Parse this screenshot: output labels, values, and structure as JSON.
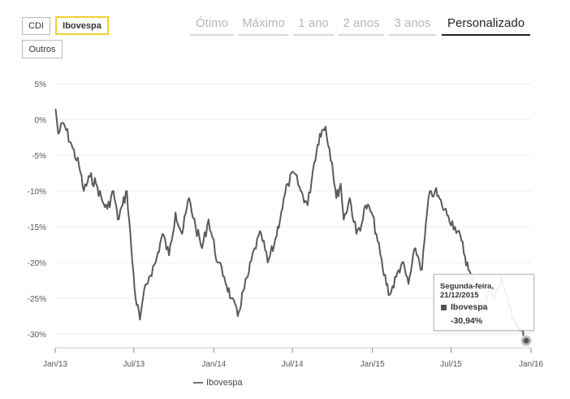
{
  "index_buttons": [
    {
      "label": "CDI",
      "active": false
    },
    {
      "label": "Ibovespa",
      "active": true
    },
    {
      "label": "Outros",
      "active": false
    }
  ],
  "period_tabs": [
    {
      "label": "Ótimo",
      "active": false
    },
    {
      "label": "Máximo",
      "active": false
    },
    {
      "label": "1 ano",
      "active": false
    },
    {
      "label": "2 anos",
      "active": false
    },
    {
      "label": "3 anos",
      "active": false
    },
    {
      "label": "Personalizado",
      "active": true
    }
  ],
  "tooltip": {
    "date": "Segunda-feira, 21/12/2015",
    "series": "Ibovespa",
    "value": "-30,94%"
  },
  "legend": {
    "label": "Ibovespa"
  },
  "colors": {
    "series": "#5a5a5a",
    "accent": "#f2cf2e",
    "grid": "#ebebeb"
  },
  "chart_data": {
    "type": "line",
    "ylim": [
      -32.5,
      5
    ],
    "y_ticks": [
      5,
      0,
      -5,
      -10,
      -15,
      -20,
      -25,
      -30
    ],
    "y_tick_labels": [
      "5%",
      "0%",
      "-5%",
      "-10%",
      "-15%",
      "-20%",
      "-25%",
      "-30%"
    ],
    "x_ticks": [
      "2013-01",
      "2013-07",
      "2014-01",
      "2014-07",
      "2015-01",
      "2015-07",
      "2016-01"
    ],
    "x_tick_labels": [
      "Jan/13",
      "Jul/13",
      "Jan/14",
      "Jul/14",
      "Jan/15",
      "Jul/15",
      "Jan/16"
    ],
    "xlabel": "",
    "ylabel": "",
    "grid": true,
    "series": [
      {
        "name": "Ibovespa",
        "x": [
          "2013-01-02",
          "2013-01-08",
          "2013-01-20",
          "2013-02-10",
          "2013-02-25",
          "2013-03-08",
          "2013-03-22",
          "2013-04-05",
          "2013-04-20",
          "2013-05-01",
          "2013-05-15",
          "2013-05-25",
          "2013-06-05",
          "2013-06-15",
          "2013-06-25",
          "2013-07-05",
          "2013-07-15",
          "2013-07-22",
          "2013-08-05",
          "2013-08-20",
          "2013-09-05",
          "2013-09-20",
          "2013-10-05",
          "2013-10-20",
          "2013-11-05",
          "2013-11-20",
          "2013-12-05",
          "2013-12-20",
          "2014-01-10",
          "2014-01-25",
          "2014-02-10",
          "2014-02-25",
          "2014-03-10",
          "2014-03-20",
          "2014-04-05",
          "2014-04-20",
          "2014-05-05",
          "2014-05-20",
          "2014-06-05",
          "2014-06-20",
          "2014-07-05",
          "2014-07-20",
          "2014-08-05",
          "2014-08-20",
          "2014-09-02",
          "2014-09-15",
          "2014-09-30",
          "2014-10-10",
          "2014-10-20",
          "2014-10-27",
          "2014-11-10",
          "2014-11-25",
          "2014-12-10",
          "2014-12-16",
          "2014-12-30",
          "2015-01-10",
          "2015-01-25",
          "2015-02-10",
          "2015-02-25",
          "2015-03-10",
          "2015-03-25",
          "2015-04-10",
          "2015-04-25",
          "2015-05-10",
          "2015-05-25",
          "2015-06-10",
          "2015-06-25",
          "2015-07-10",
          "2015-07-25",
          "2015-08-10",
          "2015-08-25",
          "2015-09-10",
          "2015-09-25",
          "2015-10-10",
          "2015-10-25",
          "2015-11-10",
          "2015-11-25",
          "2015-12-10",
          "2015-12-21"
        ],
        "values": [
          1.5,
          -2,
          -0.5,
          -4,
          -6.5,
          -10,
          -8,
          -9,
          -11.5,
          -12.5,
          -10,
          -14,
          -12,
          -10,
          -18,
          -25,
          -28,
          -25,
          -22,
          -20,
          -16,
          -19,
          -13,
          -16,
          -11,
          -15,
          -18,
          -14,
          -20,
          -22,
          -25,
          -27.5,
          -24,
          -22,
          -18,
          -16,
          -20,
          -17.5,
          -13,
          -9,
          -7.5,
          -10,
          -12,
          -6,
          -2,
          -1,
          -6,
          -11,
          -9,
          -14,
          -11,
          -16,
          -14,
          -12,
          -13,
          -16,
          -21,
          -24.5,
          -22,
          -20,
          -23,
          -18,
          -21,
          -11,
          -10,
          -12,
          -13.5,
          -15,
          -17,
          -21,
          -23.5,
          -27,
          -24,
          -25,
          -22,
          -26,
          -28,
          -29.5,
          -30.94
        ]
      }
    ]
  }
}
